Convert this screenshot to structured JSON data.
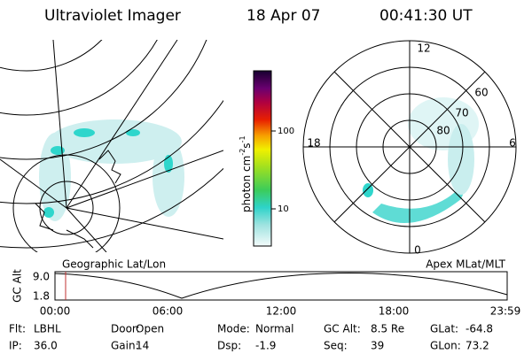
{
  "header": {
    "title": "Ultraviolet Imager",
    "date": "18 Apr 07",
    "time": "00:41:30 UT"
  },
  "colorbar": {
    "label": {
      "base": "photon cm",
      "exp1": "-2",
      "unit2": "s",
      "exp2": "-1"
    },
    "ticks": [
      "100",
      "10"
    ]
  },
  "polar": {
    "mlt": {
      "top": "12",
      "left": "18",
      "right": "6",
      "bottom": "0"
    },
    "mlat": [
      "60",
      "70",
      "80"
    ]
  },
  "panels": {
    "left": "Geographic Lat/Lon",
    "right": "Apex MLat/MLT"
  },
  "altitude": {
    "axis_label": "GC Alt",
    "ymax": "9.0",
    "ymin": "1.8",
    "times": [
      "00:00",
      "06:00",
      "12:00",
      "18:00",
      "23:59"
    ]
  },
  "info": {
    "rows": [
      [
        {
          "label": "Flt:",
          "value": "LBHL"
        },
        {
          "label": "Door:",
          "value": "Open"
        },
        {
          "label": "Mode:",
          "value": "Normal"
        },
        {
          "label": "GC Alt:",
          "value": "8.5 Re"
        },
        {
          "label": "GLat:",
          "value": "-64.8"
        }
      ],
      [
        {
          "label": "IP:",
          "value": "36.0"
        },
        {
          "label": "Gain:",
          "value": "14"
        },
        {
          "label": "Dsp:",
          "value": "-1.9"
        },
        {
          "label": "Seq:",
          "value": "39"
        },
        {
          "label": "GLon:",
          "value": "73.2"
        }
      ]
    ]
  }
}
